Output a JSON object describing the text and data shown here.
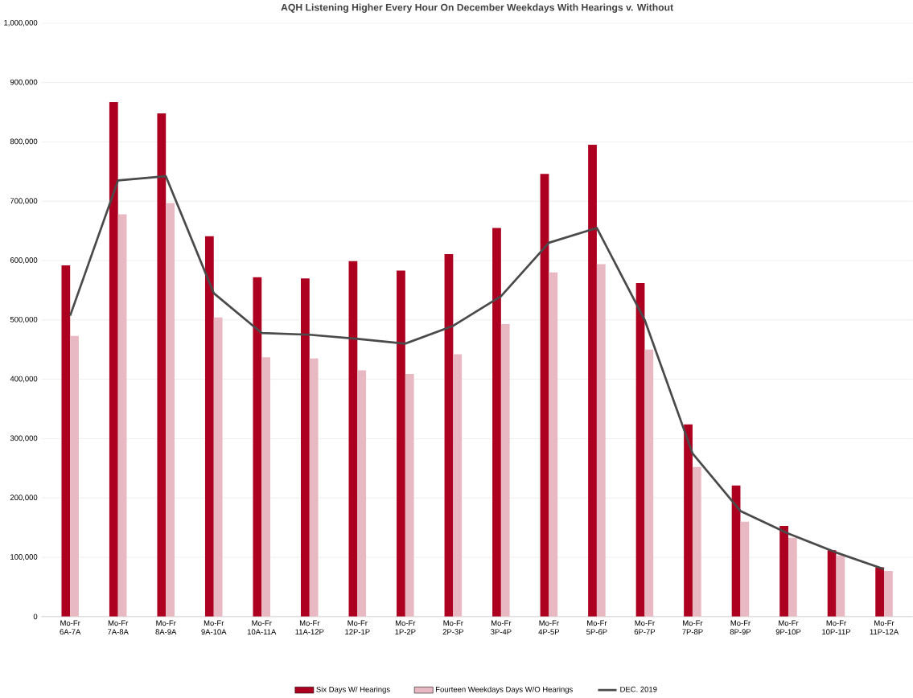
{
  "chart_data": {
    "type": "bar",
    "title": "AQH Listening Higher Every Hour On December Weekdays With Hearings v. Without",
    "categories": [
      "Mo-Fr 6A-7A",
      "Mo-Fr 7A-8A",
      "Mo-Fr 8A-9A",
      "Mo-Fr 9A-10A",
      "Mo-Fr 10A-11A",
      "Mo-Fr 11A-12P",
      "Mo-Fr 12P-1P",
      "Mo-Fr 1P-2P",
      "Mo-Fr 2P-3P",
      "Mo-Fr 3P-4P",
      "Mo-Fr 4P-5P",
      "Mo-Fr 5P-6P",
      "Mo-Fr 6P-7P",
      "Mo-Fr 7P-8P",
      "Mo-Fr 8P-9P",
      "Mo-Fr 9P-10P",
      "Mo-Fr 10P-11P",
      "Mo-Fr 11P-12A"
    ],
    "series": [
      {
        "name": "Six Days W/ Hearings",
        "color": "#ad0020",
        "values": [
          592000,
          867000,
          848000,
          641000,
          572000,
          570000,
          599000,
          583000,
          611000,
          655000,
          746000,
          795000,
          562000,
          324000,
          221000,
          153000,
          112000,
          83000
        ]
      },
      {
        "name": "Fourteen Weekdays Days W/O Hearings",
        "color": "#e8b9c2",
        "values": [
          473000,
          678000,
          697000,
          504000,
          437000,
          435000,
          415000,
          409000,
          442000,
          493000,
          580000,
          594000,
          450000,
          252000,
          160000,
          133000,
          103000,
          77000
        ]
      },
      {
        "name": "DEC. 2019",
        "type": "line",
        "color": "#4a4a4a",
        "values": [
          507000,
          735000,
          742000,
          545000,
          478000,
          475000,
          468000,
          460000,
          490000,
          540000,
          630000,
          655000,
          500000,
          275000,
          178000,
          140000,
          108000,
          80000
        ]
      }
    ],
    "ylim": [
      0,
      1000000
    ],
    "yticks": [
      {
        "value": 0,
        "label": "0"
      },
      {
        "value": 100000,
        "label": "100,000"
      },
      {
        "value": 200000,
        "label": "200,000"
      },
      {
        "value": 300000,
        "label": "300,000"
      },
      {
        "value": 400000,
        "label": "400,000"
      },
      {
        "value": 500000,
        "label": "500,000"
      },
      {
        "value": 600000,
        "label": "600,000"
      },
      {
        "value": 700000,
        "label": "700,000"
      },
      {
        "value": 800000,
        "label": "800,000"
      },
      {
        "value": 900000,
        "label": "900,000"
      },
      {
        "value": 1000000,
        "label": "1,000,000"
      }
    ],
    "grid": "y",
    "legend": "bottom",
    "marker": "none",
    "line_style": "solid"
  }
}
